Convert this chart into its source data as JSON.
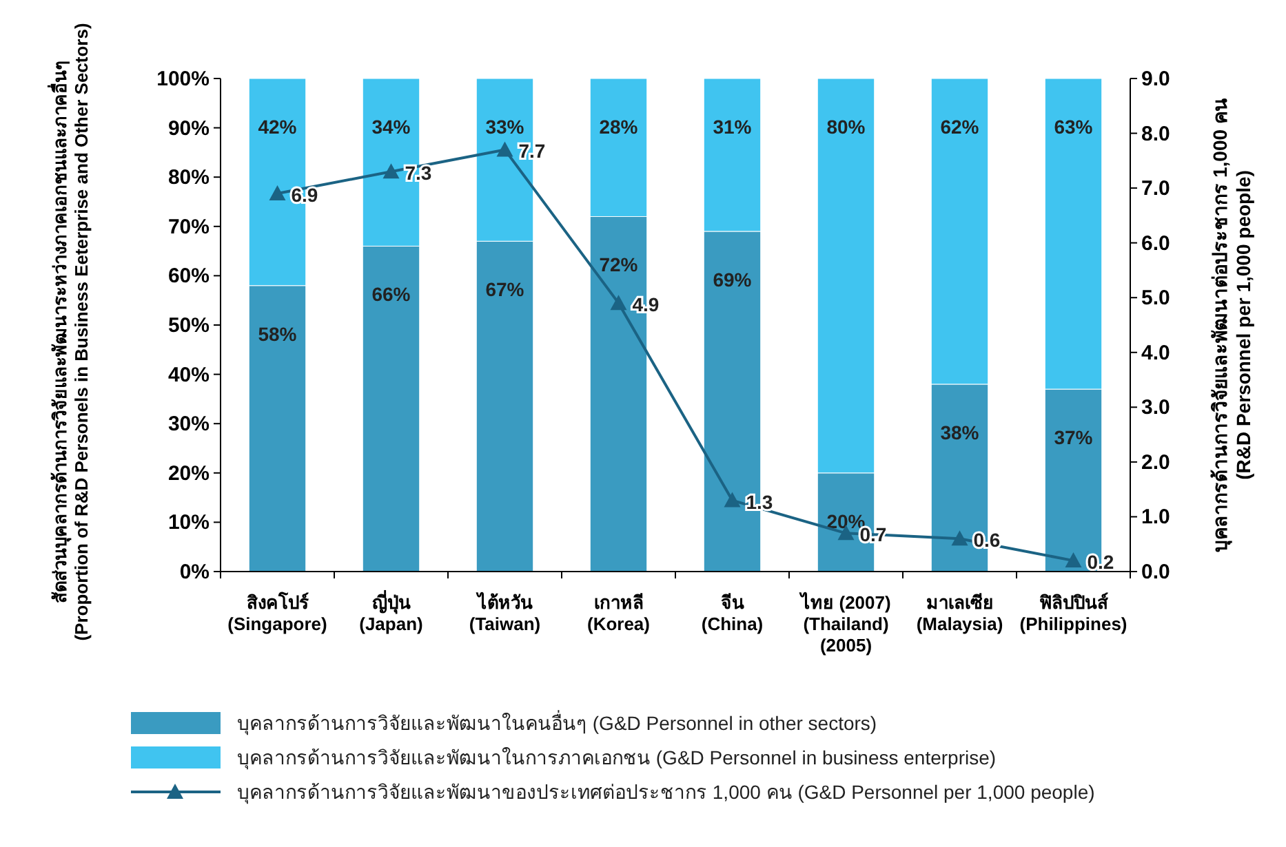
{
  "chart_data": {
    "type": "bar",
    "stacked": true,
    "categories": [
      "สิงคโปร์\n(Singapore)",
      "ญี่ปุ่น\n(Japan)",
      "ไต้หวัน\n(Taiwan)",
      "เกาหลี\n(Korea)",
      "จีน\n(China)",
      "ไทย (2007)\n(Thailand)\n(2005)",
      "มาเลเซีย\n(Malaysia)",
      "ฟิลิปปินส์\n(Philippines)"
    ],
    "series": [
      {
        "name": "บุคลากรด้านการวิจัยและพัฒนาในคนอื่นๆ (G&D Personnel in other sectors)",
        "color": "#3a9bc1",
        "values": [
          58,
          66,
          67,
          72,
          69,
          20,
          38,
          37
        ],
        "value_labels": [
          "58%",
          "66%",
          "67%",
          "72%",
          "69%",
          "20%",
          "38%",
          "37%"
        ]
      },
      {
        "name": "บุคลากรด้านการวิจัยและพัฒนาในการภาคเอกชน (G&D Personnel in business enterprise)",
        "color": "#40c4f0",
        "values": [
          42,
          34,
          33,
          28,
          31,
          80,
          62,
          63
        ],
        "value_labels": [
          "42%",
          "34%",
          "33%",
          "28%",
          "31%",
          "80%",
          "62%",
          "63%"
        ]
      },
      {
        "name": "บุคลากรด้านการวิจัยและพัฒนาของประเทศต่อประชากร 1,000 คน (G&D Personnel per 1,000 people)",
        "type": "line",
        "axis": "y2",
        "color": "#1b6384",
        "marker": "triangle",
        "values": [
          6.9,
          7.3,
          7.7,
          4.9,
          1.3,
          0.7,
          0.6,
          0.2
        ],
        "value_labels": [
          "6.9",
          "7.3",
          "7.7",
          "4.9",
          "1.3",
          "0.7",
          "0.6",
          "0.2"
        ]
      }
    ],
    "ylabel": "สัดส่วนบุคลากรด้านการวิจัยและพัฒนาระหว่างภาคเอกชนและภาคอื่นๆ\n(Proportion of R&D Personels in Business Eeterprise and Other Sectors)",
    "y2label": "บุคลากรด้านการวิจัยและพัฒนาต่อประชากร 1,000 คน\n(R&D Personnel per 1,000 people)",
    "ylim": [
      0,
      100
    ],
    "yticks": [
      {
        "value": 0,
        "label": "0%"
      },
      {
        "value": 10,
        "label": "10%"
      },
      {
        "value": 20,
        "label": "20%"
      },
      {
        "value": 30,
        "label": "30%"
      },
      {
        "value": 40,
        "label": "40%"
      },
      {
        "value": 50,
        "label": "50%"
      },
      {
        "value": 60,
        "label": "60%"
      },
      {
        "value": 70,
        "label": "70%"
      },
      {
        "value": 80,
        "label": "80%"
      },
      {
        "value": 90,
        "label": "90%"
      },
      {
        "value": 100,
        "label": "100%"
      }
    ],
    "y2lim": [
      0,
      9
    ],
    "y2ticks": [
      {
        "value": 0,
        "label": "0.0"
      },
      {
        "value": 1,
        "label": "1.0"
      },
      {
        "value": 2,
        "label": "2.0"
      },
      {
        "value": 3,
        "label": "3.0"
      },
      {
        "value": 4,
        "label": "4.0"
      },
      {
        "value": 5,
        "label": "5.0"
      },
      {
        "value": 6,
        "label": "6.0"
      },
      {
        "value": 7,
        "label": "7.0"
      },
      {
        "value": 8,
        "label": "8.0"
      },
      {
        "value": 9,
        "label": "9.0"
      }
    ],
    "legend": "bottom"
  }
}
